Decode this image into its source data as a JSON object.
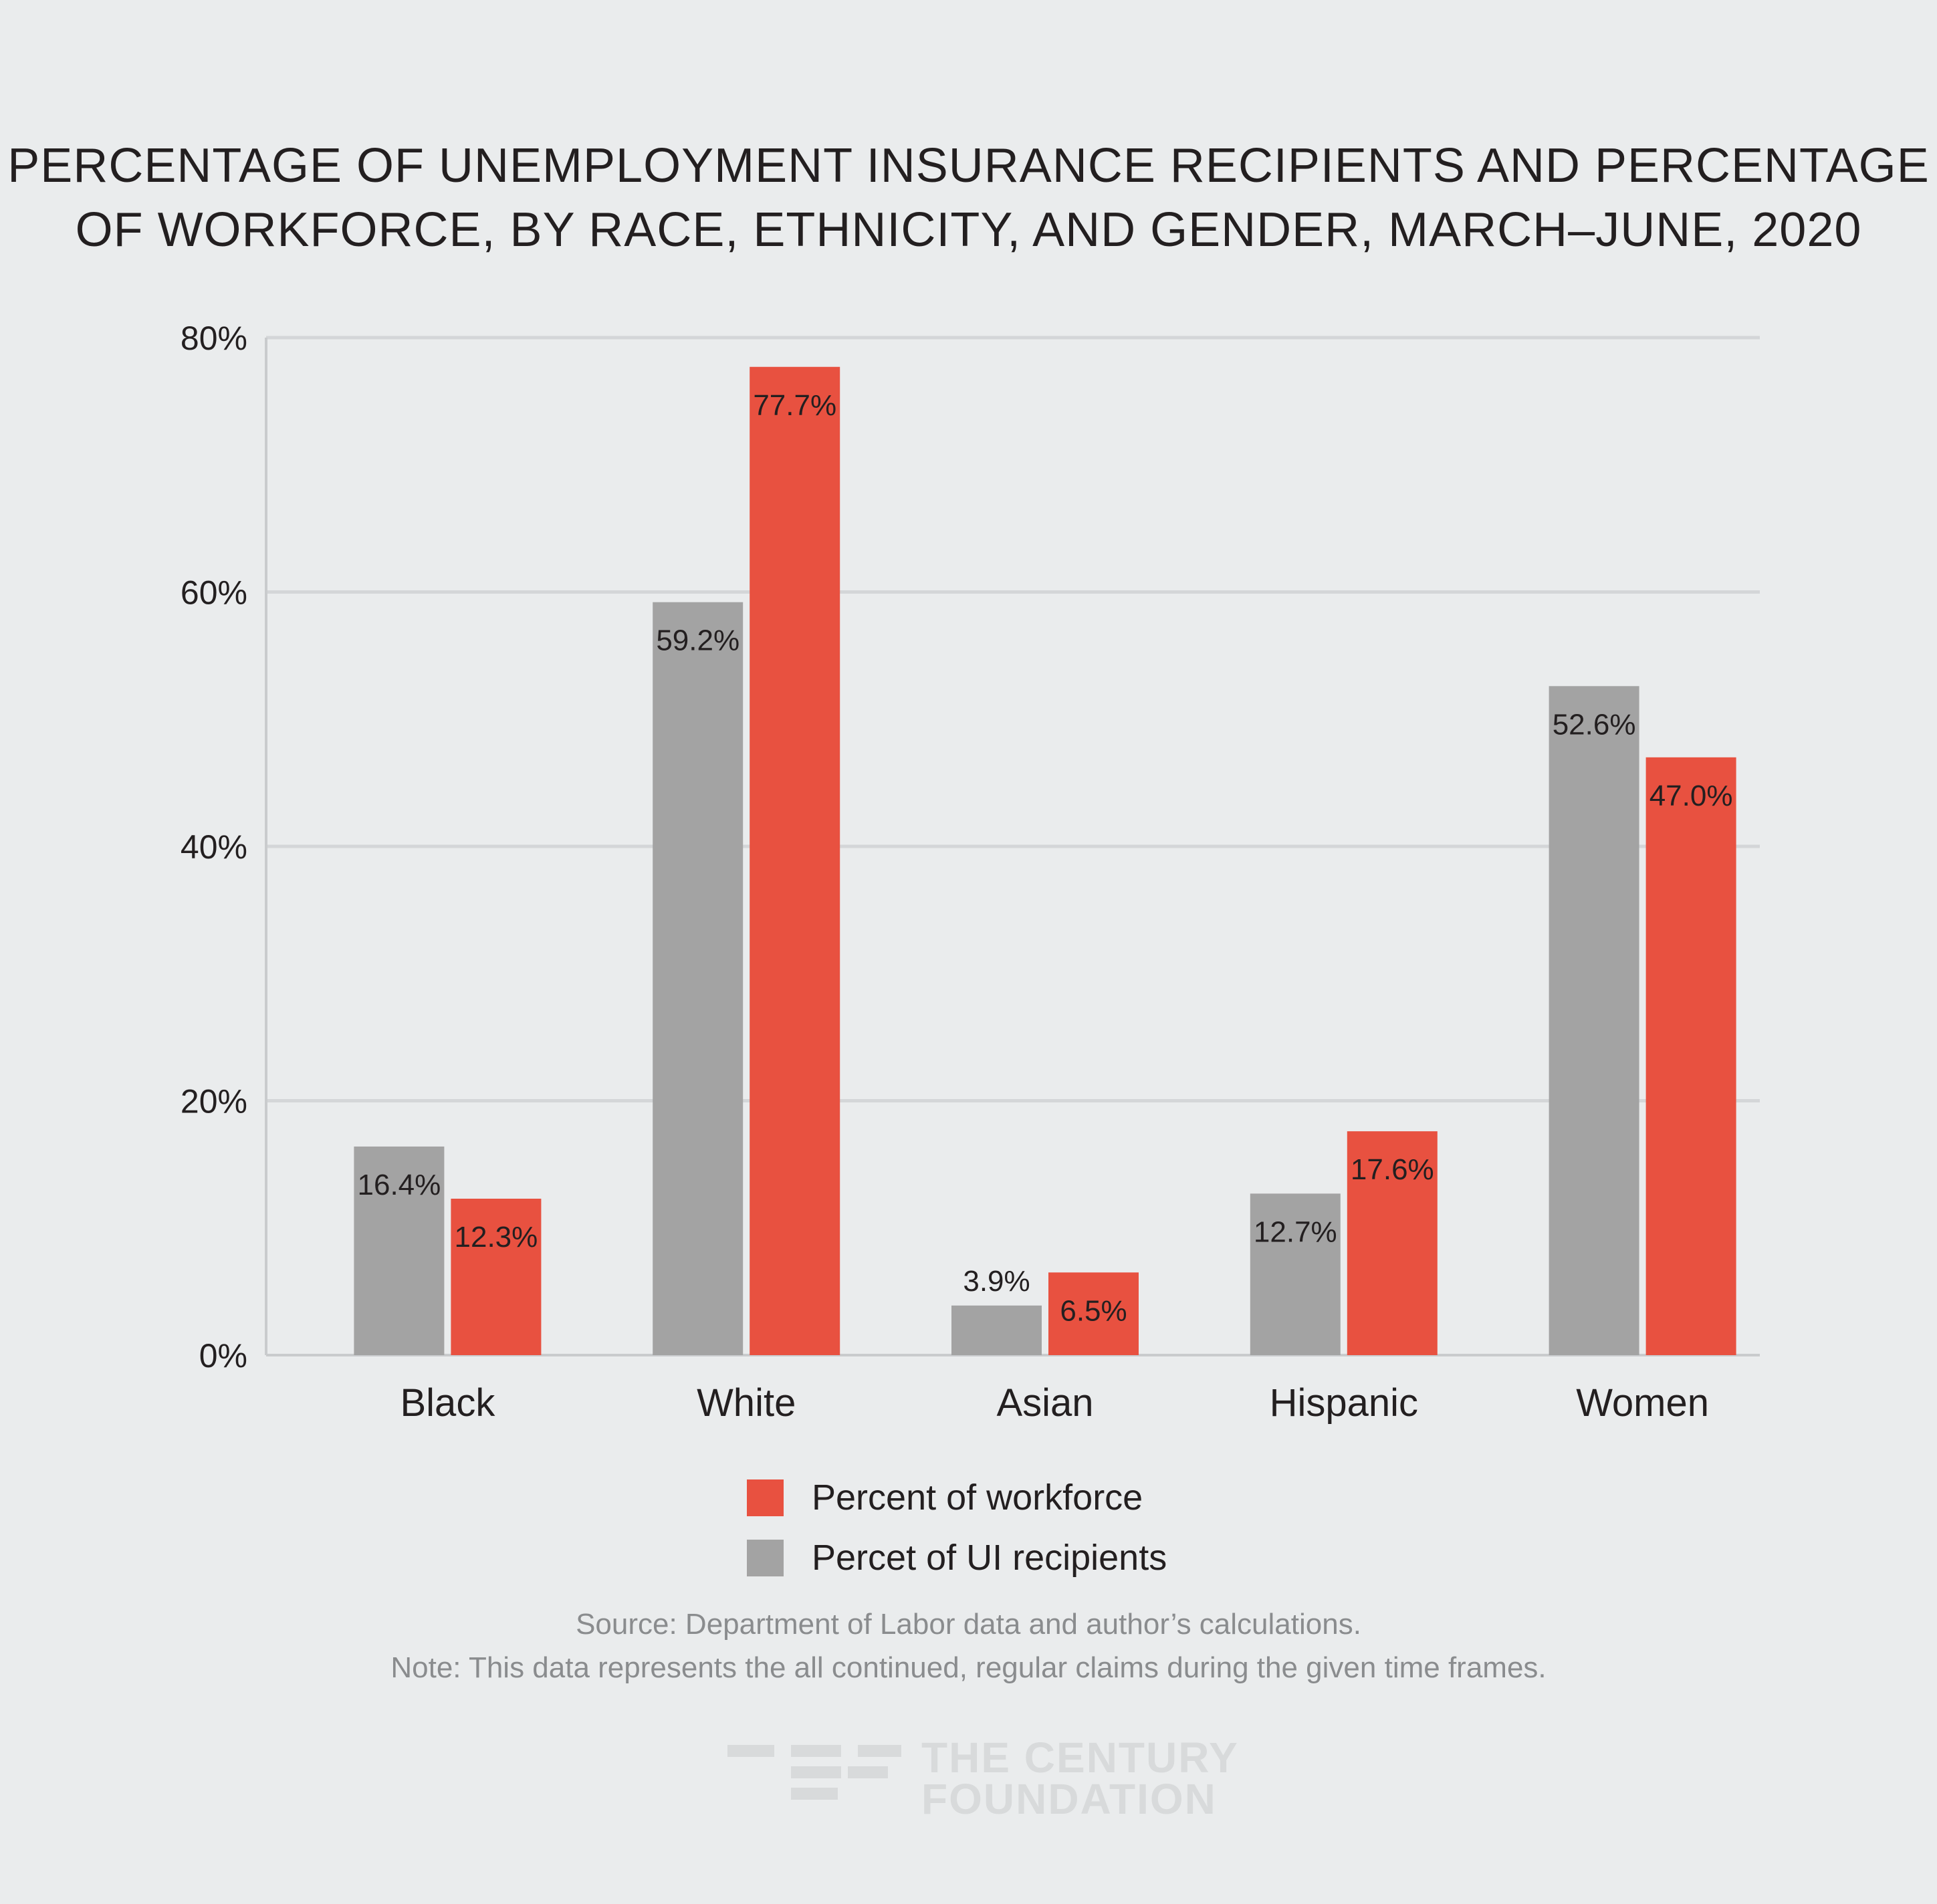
{
  "chart_data": {
    "type": "bar",
    "title_lines": [
      "PERCENTAGE OF UNEMPLOYMENT INSURANCE RECIPIENTS AND PERCENTAGE",
      "OF WORKFORCE, BY RACE, ETHNICITY, AND GENDER, MARCH–JUNE, 2020"
    ],
    "categories": [
      "Black",
      "White",
      "Asian",
      "Hispanic",
      "Women"
    ],
    "series": [
      {
        "name": "Percet of UI recipients",
        "color": "#a3a3a3",
        "values": [
          16.4,
          59.2,
          3.9,
          12.7,
          52.6
        ],
        "labels": [
          "16.4%",
          "59.2%",
          "3.9%",
          "12.7%",
          "52.6%"
        ]
      },
      {
        "name": "Percent of workforce",
        "color": "#e85140",
        "values": [
          12.3,
          77.7,
          6.5,
          17.6,
          47.0
        ],
        "labels": [
          "12.3%",
          "77.7%",
          "6.5%",
          "17.6%",
          "47.0%"
        ]
      }
    ],
    "ylim": [
      0,
      80
    ],
    "yticks": [
      0,
      20,
      40,
      60,
      80
    ],
    "ytick_labels": [
      "0%",
      "20%",
      "40%",
      "60%",
      "80%"
    ],
    "grid": true,
    "legend": [
      {
        "label": "Percent of workforce",
        "color": "#e85140"
      },
      {
        "label": "Percet of UI recipients",
        "color": "#a3a3a3"
      }
    ],
    "legend_position": "bottom-center"
  },
  "footnotes": {
    "source": "Source: Department of Labor data and author’s calculations.",
    "note": "Note: This data represents the all continued, regular claims during the given time frames."
  },
  "logo": {
    "line1": "THE CENTURY",
    "line2": "FOUNDATION"
  }
}
